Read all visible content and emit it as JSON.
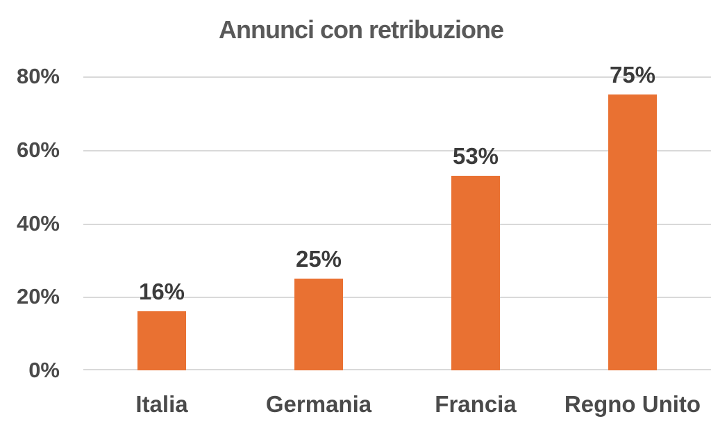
{
  "chart_data": {
    "type": "bar",
    "title": "Annunci con retribuzione",
    "categories": [
      "Italia",
      "Germania",
      "Francia",
      "Regno Unito"
    ],
    "values": [
      16,
      25,
      53,
      75
    ],
    "data_labels": [
      "16%",
      "25%",
      "53%",
      "75%"
    ],
    "xlabel": "",
    "ylabel": "",
    "ylim": [
      0,
      80
    ],
    "y_ticks": [
      "0%",
      "20%",
      "40%",
      "60%",
      "80%"
    ],
    "grid": true,
    "legend": "none",
    "colors": {
      "bar": "#E97132",
      "gridline": "#D9D9D9",
      "title": "#595959",
      "data_label": "#3B3B3B",
      "axis_label": "#4A4A4A"
    }
  }
}
